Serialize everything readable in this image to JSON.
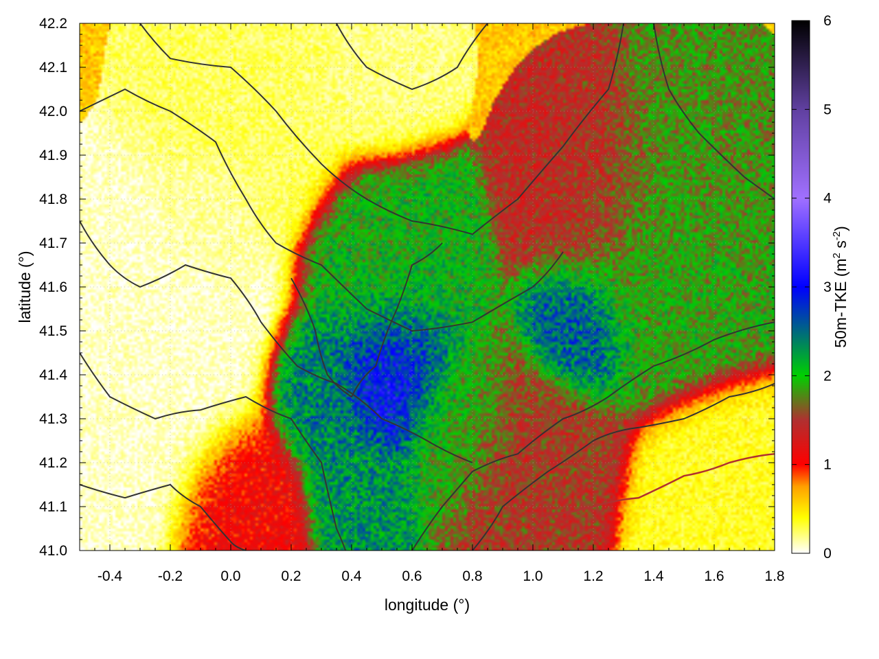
{
  "chart_data": {
    "type": "heatmap",
    "title": "",
    "xlabel": "longitude (°)",
    "ylabel": "latitude (°)",
    "xlim": [
      -0.5,
      1.8
    ],
    "ylim": [
      41.0,
      42.2
    ],
    "x_ticks": [
      -0.4,
      -0.2,
      0.0,
      0.2,
      0.4,
      0.6,
      0.8,
      1.0,
      1.2,
      1.4,
      1.6,
      1.8
    ],
    "x_tick_labels": [
      "-0.4",
      "-0.2",
      "0.0",
      "0.2",
      "0.4",
      "0.6",
      "0.8",
      "1.0",
      "1.2",
      "1.4",
      "1.6",
      "1.8"
    ],
    "y_ticks": [
      41.0,
      41.1,
      41.2,
      41.3,
      41.4,
      41.5,
      41.6,
      41.7,
      41.8,
      41.9,
      42.0,
      42.1,
      42.2
    ],
    "y_tick_labels": [
      "41.0",
      "41.1",
      "41.2",
      "41.3",
      "41.4",
      "41.5",
      "41.6",
      "41.7",
      "41.8",
      "41.9",
      "42.0",
      "42.1",
      "42.2"
    ],
    "grid": true,
    "colorbar": {
      "label_main": "50m-TKE (m",
      "label_sup1": "2",
      "label_mid": " s",
      "label_sup2": "-2",
      "label_end": ")",
      "range": [
        0,
        6
      ],
      "ticks": [
        0,
        1,
        2,
        3,
        4,
        5,
        6
      ],
      "tick_labels": [
        "0",
        "1",
        "2",
        "3",
        "4",
        "5",
        "6"
      ],
      "stops": [
        {
          "v": 0.0,
          "color": "#ffffff"
        },
        {
          "v": 0.4,
          "color": "#ffff00"
        },
        {
          "v": 0.75,
          "color": "#ffa000"
        },
        {
          "v": 1.0,
          "color": "#ff0000"
        },
        {
          "v": 1.5,
          "color": "#b03030"
        },
        {
          "v": 2.0,
          "color": "#00d000"
        },
        {
          "v": 3.0,
          "color": "#0000ff"
        },
        {
          "v": 4.0,
          "color": "#a070ff"
        },
        {
          "v": 5.0,
          "color": "#6040a0"
        },
        {
          "v": 6.0,
          "color": "#000000"
        }
      ]
    },
    "field_features": [
      {
        "lon": -0.25,
        "lat": 41.45,
        "value": 0.08,
        "spread": 0.22
      },
      {
        "lon": -0.08,
        "lat": 41.76,
        "value": 0.15,
        "spread": 0.1
      },
      {
        "lon": 0.05,
        "lat": 42.05,
        "value": 0.25,
        "spread": 0.18
      },
      {
        "lon": 0.5,
        "lat": 42.12,
        "value": 0.2,
        "spread": 0.12
      },
      {
        "lon": 0.55,
        "lat": 41.42,
        "value": 3.1,
        "spread": 0.12
      },
      {
        "lon": 0.42,
        "lat": 41.15,
        "value": 2.3,
        "spread": 0.1
      },
      {
        "lon": 0.3,
        "lat": 41.35,
        "value": 2.4,
        "spread": 0.1
      },
      {
        "lon": 0.55,
        "lat": 41.6,
        "value": 2.0,
        "spread": 0.15
      },
      {
        "lon": 0.75,
        "lat": 41.3,
        "value": 1.9,
        "spread": 0.12
      },
      {
        "lon": 1.15,
        "lat": 41.52,
        "value": 2.6,
        "spread": 0.1
      },
      {
        "lon": 1.4,
        "lat": 41.7,
        "value": 1.9,
        "spread": 0.18
      },
      {
        "lon": 1.55,
        "lat": 41.9,
        "value": 1.8,
        "spread": 0.14
      },
      {
        "lon": 1.2,
        "lat": 41.8,
        "value": 1.4,
        "spread": 0.15
      },
      {
        "lon": 1.0,
        "lat": 41.2,
        "value": 1.5,
        "spread": 0.15
      },
      {
        "lon": 1.6,
        "lat": 41.05,
        "value": 0.35,
        "spread": 0.15
      },
      {
        "lon": 0.05,
        "lat": 41.1,
        "value": 1.1,
        "spread": 0.12
      }
    ],
    "coastline": [
      [
        0.95,
        41.0
      ],
      [
        1.05,
        41.08
      ],
      [
        1.2,
        41.1
      ],
      [
        1.35,
        41.12
      ],
      [
        1.5,
        41.17
      ],
      [
        1.65,
        41.2
      ],
      [
        1.8,
        41.22
      ]
    ],
    "contours": [
      [
        [
          -0.5,
          42.0
        ],
        [
          -0.35,
          42.05
        ],
        [
          -0.2,
          42.0
        ],
        [
          -0.05,
          41.93
        ],
        [
          0.05,
          41.8
        ],
        [
          0.15,
          41.7
        ],
        [
          0.3,
          41.65
        ],
        [
          0.45,
          41.55
        ],
        [
          0.6,
          41.5
        ],
        [
          0.8,
          41.52
        ],
        [
          1.0,
          41.6
        ],
        [
          1.1,
          41.68
        ]
      ],
      [
        [
          -0.3,
          42.2
        ],
        [
          -0.2,
          42.12
        ],
        [
          0.0,
          42.1
        ],
        [
          0.15,
          42.0
        ],
        [
          0.3,
          41.88
        ],
        [
          0.45,
          41.8
        ],
        [
          0.6,
          41.75
        ],
        [
          0.8,
          41.72
        ],
        [
          0.95,
          41.8
        ],
        [
          1.1,
          41.92
        ],
        [
          1.25,
          42.05
        ],
        [
          1.3,
          42.2
        ]
      ],
      [
        [
          -0.5,
          41.75
        ],
        [
          -0.4,
          41.65
        ],
        [
          -0.3,
          41.6
        ],
        [
          -0.15,
          41.65
        ],
        [
          0.0,
          41.62
        ],
        [
          0.1,
          41.52
        ],
        [
          0.22,
          41.42
        ],
        [
          0.35,
          41.38
        ],
        [
          0.5,
          41.3
        ],
        [
          0.65,
          41.25
        ],
        [
          0.8,
          41.2
        ]
      ],
      [
        [
          -0.5,
          41.45
        ],
        [
          -0.4,
          41.35
        ],
        [
          -0.25,
          41.3
        ],
        [
          -0.1,
          41.32
        ],
        [
          0.05,
          41.35
        ],
        [
          0.2,
          41.3
        ],
        [
          0.3,
          41.2
        ],
        [
          0.35,
          41.05
        ],
        [
          0.38,
          41.0
        ]
      ],
      [
        [
          -0.5,
          41.15
        ],
        [
          -0.35,
          41.12
        ],
        [
          -0.2,
          41.15
        ],
        [
          -0.1,
          41.1
        ],
        [
          0.0,
          41.02
        ],
        [
          0.05,
          41.0
        ]
      ],
      [
        [
          0.6,
          41.0
        ],
        [
          0.7,
          41.1
        ],
        [
          0.8,
          41.18
        ],
        [
          0.95,
          41.22
        ],
        [
          1.1,
          41.3
        ],
        [
          1.25,
          41.35
        ],
        [
          1.4,
          41.42
        ],
        [
          1.6,
          41.48
        ],
        [
          1.8,
          41.52
        ]
      ],
      [
        [
          0.8,
          41.0
        ],
        [
          0.9,
          41.1
        ],
        [
          1.05,
          41.18
        ],
        [
          1.2,
          41.25
        ],
        [
          1.35,
          41.28
        ],
        [
          1.5,
          41.3
        ],
        [
          1.65,
          41.35
        ],
        [
          1.8,
          41.38
        ]
      ],
      [
        [
          1.4,
          42.2
        ],
        [
          1.45,
          42.05
        ],
        [
          1.55,
          41.95
        ],
        [
          1.7,
          41.85
        ],
        [
          1.8,
          41.8
        ]
      ],
      [
        [
          0.35,
          42.2
        ],
        [
          0.45,
          42.1
        ],
        [
          0.6,
          42.05
        ],
        [
          0.75,
          42.1
        ],
        [
          0.85,
          42.2
        ]
      ],
      [
        [
          0.2,
          41.62
        ],
        [
          0.28,
          41.5
        ],
        [
          0.32,
          41.4
        ],
        [
          0.4,
          41.35
        ],
        [
          0.48,
          41.42
        ],
        [
          0.55,
          41.55
        ],
        [
          0.6,
          41.65
        ],
        [
          0.7,
          41.7
        ]
      ]
    ]
  }
}
